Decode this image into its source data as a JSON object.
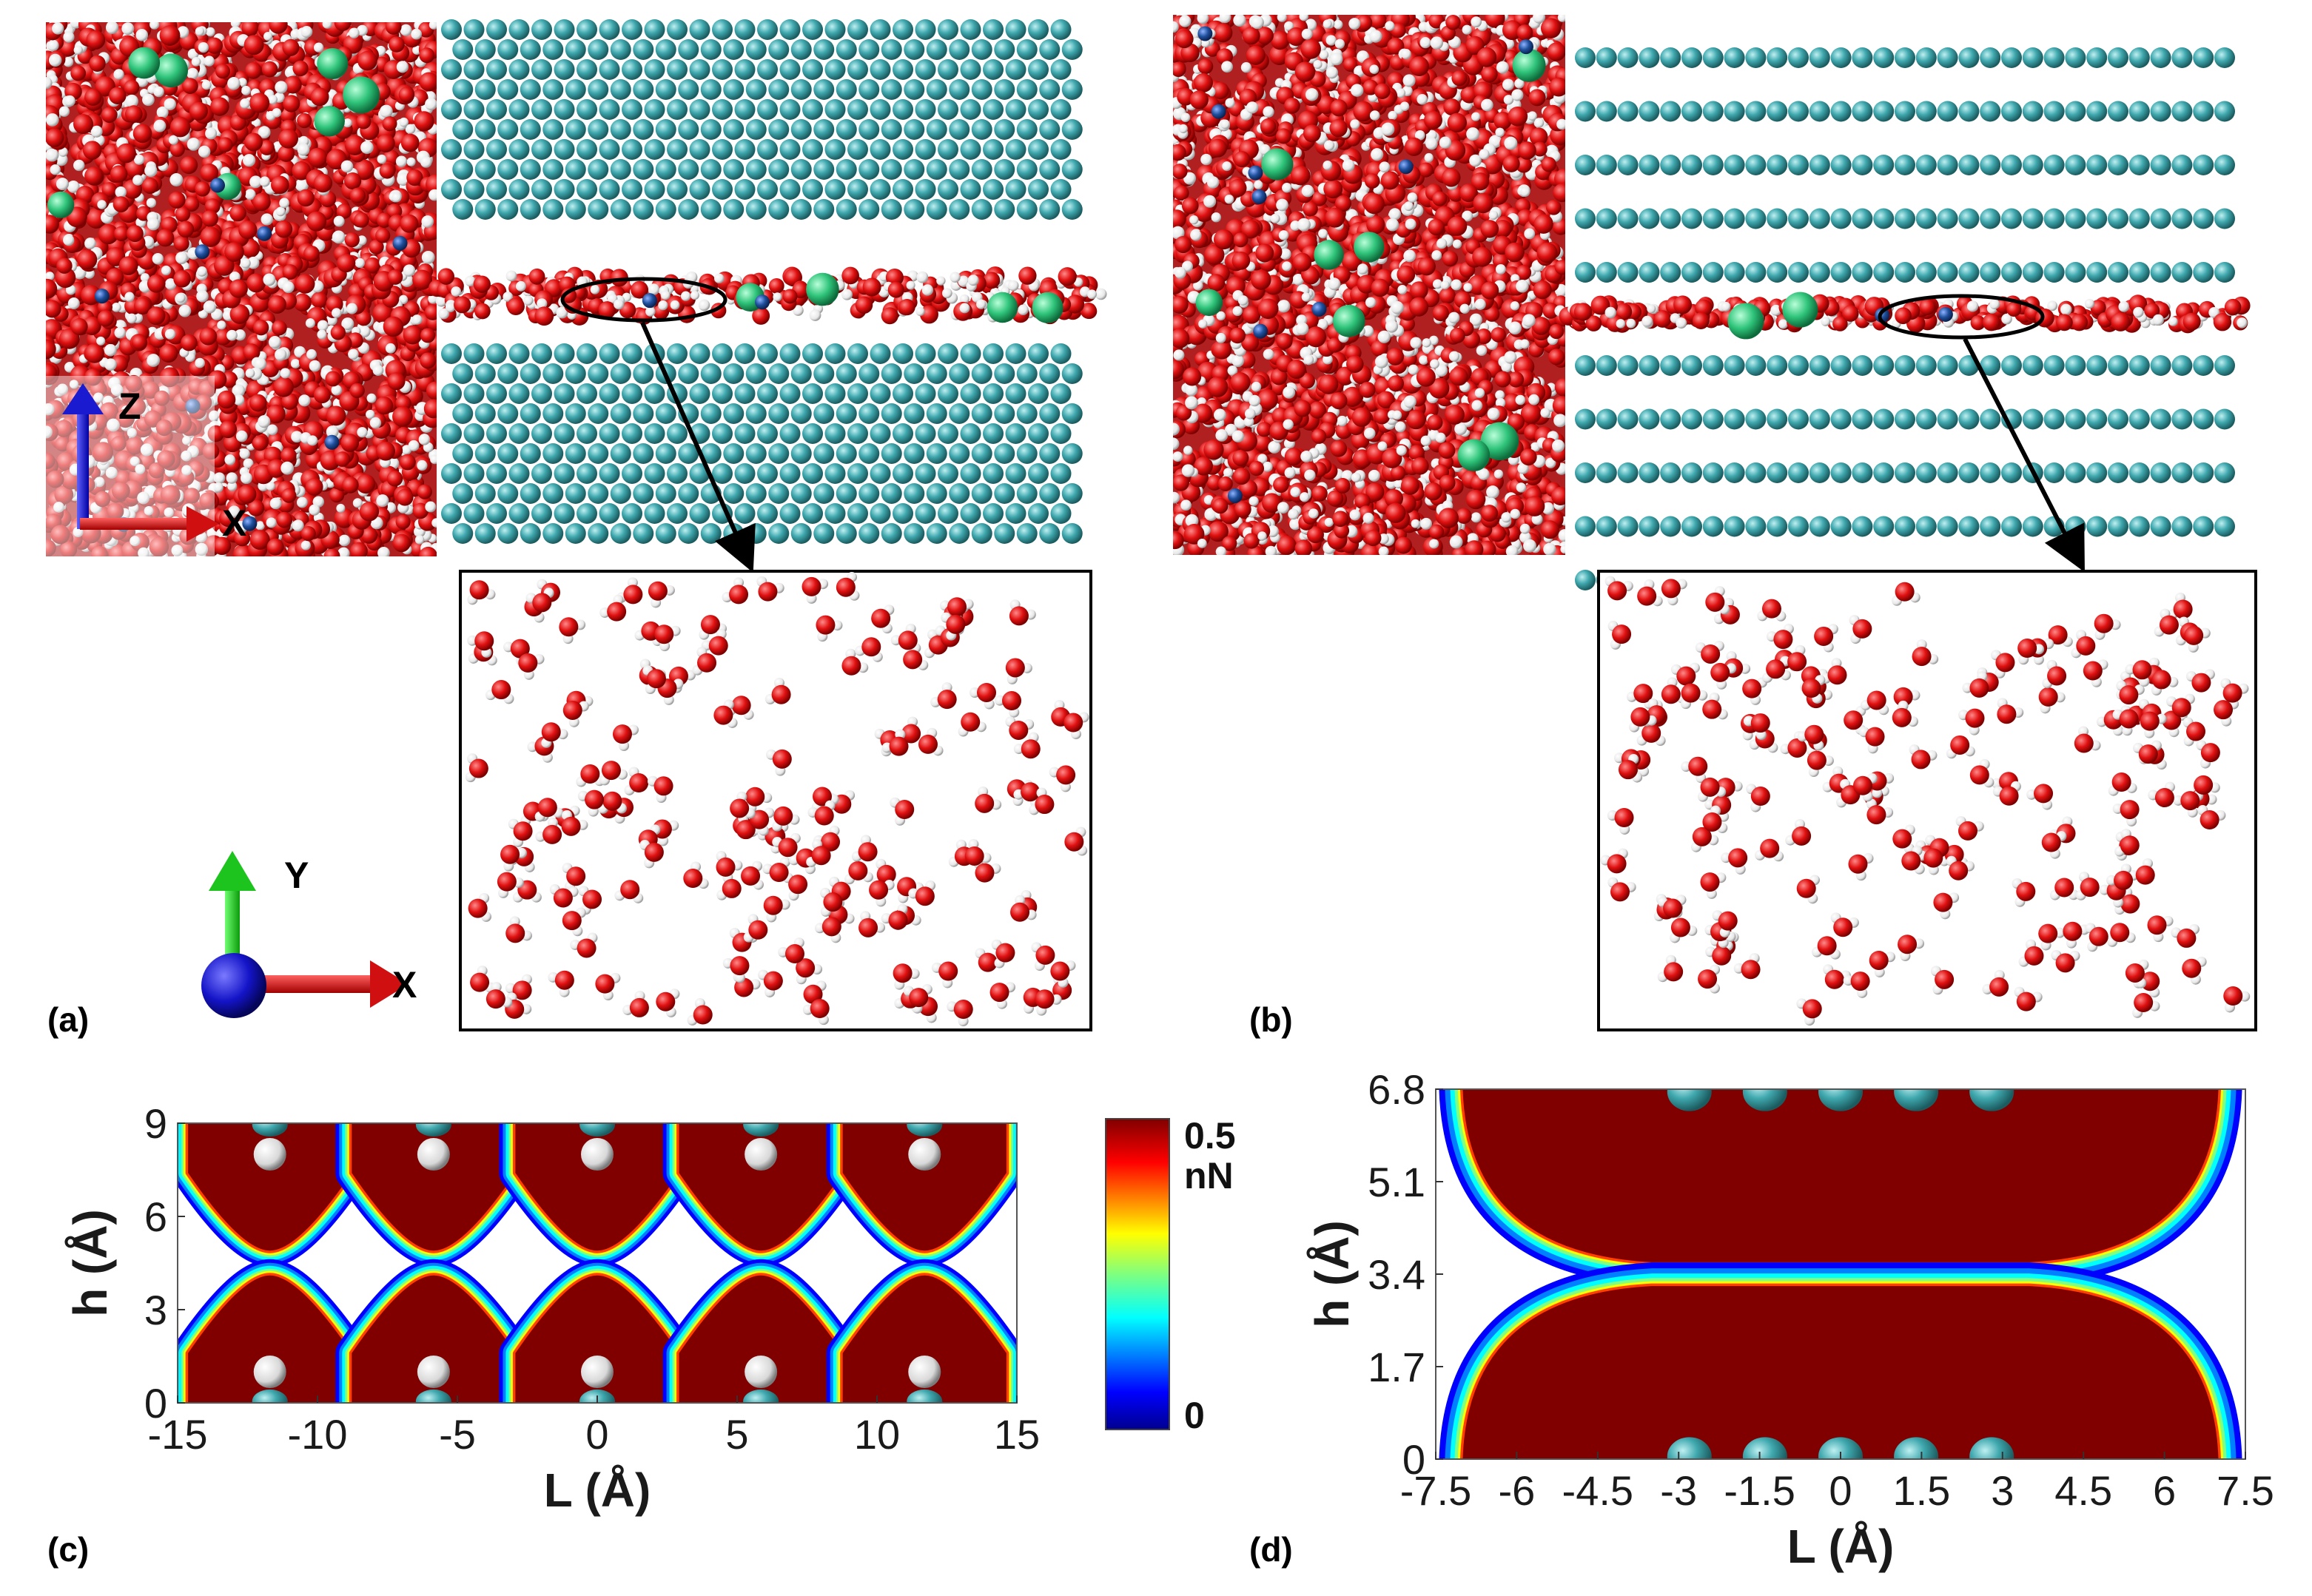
{
  "panel_labels": {
    "a": "(a)",
    "b": "(b)",
    "c": "(c)",
    "d": "(d)"
  },
  "axes_3d": {
    "z": "Z",
    "x": "X",
    "y": "Y"
  },
  "colors": {
    "oxygen": "#e01010",
    "hydrogen": "#f2f2f2",
    "wall_atom": "#3fa8ae",
    "sodium_ion": "#2fc47a",
    "chloride_ion": "#1f4f9c",
    "force_max": "#800000",
    "force_zero": "#00008f"
  },
  "colorbar": {
    "max_label": "0.5",
    "unit": "nN",
    "min_label": "0"
  },
  "chart_data": [
    {
      "type": "heatmap",
      "panel": "(c)",
      "xlabel": "L (Å)",
      "ylabel": "h (Å)",
      "xlim": [
        -15,
        15
      ],
      "ylim": [
        0,
        9
      ],
      "xticks": [
        "-15",
        "-10",
        "-5",
        "0",
        "5",
        "10",
        "15"
      ],
      "yticks": [
        "0",
        "3",
        "6",
        "9"
      ],
      "atom_x": [
        -11.7,
        -5.85,
        0,
        5.85,
        11.7
      ],
      "colorbar_range": [
        0,
        0.5
      ],
      "colorbar_unit": "nN"
    },
    {
      "type": "heatmap",
      "panel": "(d)",
      "xlabel": "L (Å)",
      "ylabel": "h (Å)",
      "xlim": [
        -7.5,
        7.5
      ],
      "ylim": [
        0,
        6.8
      ],
      "xticks": [
        "-7.5",
        "-6",
        "-4.5",
        "-3",
        "-1.5",
        "0",
        "1.5",
        "3",
        "4.5",
        "6",
        "7.5"
      ],
      "yticks": [
        "0",
        "1.7",
        "3.4",
        "5.1",
        "6.8"
      ],
      "atom_x": [
        -1.4,
        0,
        1.4,
        2.8,
        4.2
      ],
      "colorbar_range": [
        0,
        0.5
      ],
      "colorbar_unit": "nN"
    }
  ]
}
